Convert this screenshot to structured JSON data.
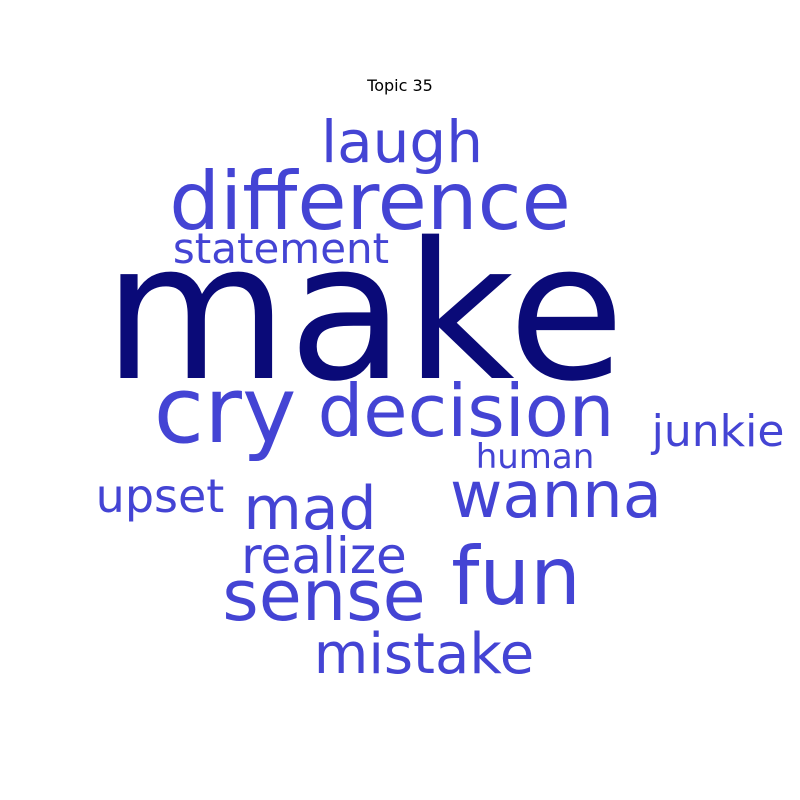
{
  "title": "Topic 35",
  "colors": {
    "top_word": "#0a0a78",
    "words": "#4444d4",
    "background": "#ffffff"
  },
  "words": [
    {
      "text": "make",
      "rank": 1
    },
    {
      "text": "difference",
      "rank": 2
    },
    {
      "text": "cry",
      "rank": 3
    },
    {
      "text": "decision",
      "rank": 4
    },
    {
      "text": "fun",
      "rank": 5
    },
    {
      "text": "sense",
      "rank": 6
    },
    {
      "text": "wanna",
      "rank": 7
    },
    {
      "text": "mistake",
      "rank": 8
    },
    {
      "text": "laugh",
      "rank": 9
    },
    {
      "text": "mad",
      "rank": 10
    },
    {
      "text": "realize",
      "rank": 11
    },
    {
      "text": "statement",
      "rank": 12
    },
    {
      "text": "upset",
      "rank": 13
    },
    {
      "text": "junkie",
      "rank": 14
    },
    {
      "text": "human",
      "rank": 15
    }
  ]
}
